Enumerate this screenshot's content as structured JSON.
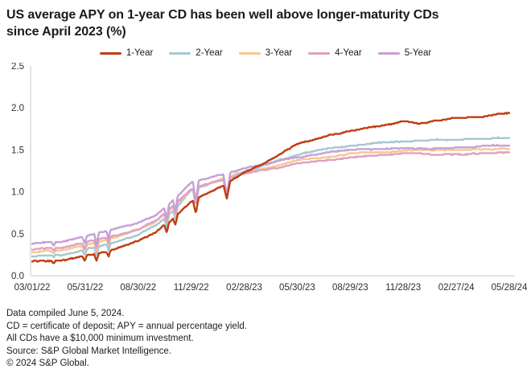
{
  "title": {
    "line1": "US average APY on 1-year CD has been well above longer-maturity CDs",
    "line2": "since April 2023 (%)"
  },
  "legend": {
    "position": "top",
    "items": [
      {
        "label": "1-Year",
        "color": "#bf3e10"
      },
      {
        "label": "2-Year",
        "color": "#a5c8d3"
      },
      {
        "label": "3-Year",
        "color": "#f7c78e"
      },
      {
        "label": "4-Year",
        "color": "#dfa0c2"
      },
      {
        "label": "5-Year",
        "color": "#c6a0d6"
      }
    ]
  },
  "chart_data": {
    "type": "line",
    "title": "US average APY on 1-year CD has been well above longer-maturity CDs since April 2023 (%)",
    "xlabel": "",
    "ylabel": "",
    "ylim": [
      0.0,
      2.5
    ],
    "y_ticks": [
      "0.0",
      "0.5",
      "1.0",
      "1.5",
      "2.0",
      "2.5"
    ],
    "x_tick_labels": [
      "03/01/22",
      "05/31/22",
      "08/30/22",
      "11/29/22",
      "02/28/23",
      "05/30/23",
      "08/29/23",
      "11/28/23",
      "02/27/24",
      "05/28/24"
    ],
    "grid": false,
    "axis_color": "#c8c8c8",
    "tick_label_color": "#2e2e2e",
    "series": [
      {
        "name": "1-Year",
        "color": "#bf3e10",
        "dip_scale": 0.85,
        "values_at_ticks": [
          0.17,
          0.24,
          0.41,
          0.89,
          1.24,
          1.57,
          1.72,
          1.83,
          1.87,
          1.93
        ],
        "anchors": [
          [
            0,
            0.17
          ],
          [
            0.06,
            0.18
          ],
          [
            0.111,
            0.24
          ],
          [
            0.167,
            0.31
          ],
          [
            0.222,
            0.41
          ],
          [
            0.26,
            0.52
          ],
          [
            0.3,
            0.7
          ],
          [
            0.333,
            0.89
          ],
          [
            0.37,
            1.0
          ],
          [
            0.4,
            1.08
          ],
          [
            0.444,
            1.24
          ],
          [
            0.48,
            1.33
          ],
          [
            0.52,
            1.46
          ],
          [
            0.556,
            1.57
          ],
          [
            0.6,
            1.64
          ],
          [
            0.667,
            1.72
          ],
          [
            0.72,
            1.78
          ],
          [
            0.778,
            1.83
          ],
          [
            0.81,
            1.81
          ],
          [
            0.84,
            1.85
          ],
          [
            0.889,
            1.87
          ],
          [
            0.94,
            1.88
          ],
          [
            0.97,
            1.91
          ],
          [
            1,
            1.93
          ]
        ]
      },
      {
        "name": "2-Year",
        "color": "#a5c8d3",
        "dip_scale": 1.0,
        "values_at_ticks": [
          0.23,
          0.32,
          0.49,
          1.01,
          1.24,
          1.44,
          1.54,
          1.61,
          1.63,
          1.65
        ],
        "anchors": [
          [
            0,
            0.23
          ],
          [
            0.06,
            0.24
          ],
          [
            0.111,
            0.32
          ],
          [
            0.167,
            0.4
          ],
          [
            0.222,
            0.49
          ],
          [
            0.26,
            0.6
          ],
          [
            0.3,
            0.8
          ],
          [
            0.333,
            1.01
          ],
          [
            0.37,
            1.09
          ],
          [
            0.4,
            1.16
          ],
          [
            0.444,
            1.24
          ],
          [
            0.48,
            1.31
          ],
          [
            0.52,
            1.39
          ],
          [
            0.556,
            1.44
          ],
          [
            0.6,
            1.49
          ],
          [
            0.667,
            1.54
          ],
          [
            0.72,
            1.58
          ],
          [
            0.778,
            1.61
          ],
          [
            0.84,
            1.62
          ],
          [
            0.889,
            1.63
          ],
          [
            1,
            1.65
          ]
        ]
      },
      {
        "name": "3-Year",
        "color": "#f7c78e",
        "dip_scale": 1.0,
        "values_at_ticks": [
          0.28,
          0.36,
          0.54,
          1.02,
          1.23,
          1.39,
          1.45,
          1.49,
          1.51,
          1.52
        ],
        "anchors": [
          [
            0,
            0.28
          ],
          [
            0.06,
            0.29
          ],
          [
            0.111,
            0.36
          ],
          [
            0.167,
            0.44
          ],
          [
            0.222,
            0.54
          ],
          [
            0.26,
            0.64
          ],
          [
            0.3,
            0.83
          ],
          [
            0.333,
            1.02
          ],
          [
            0.37,
            1.09
          ],
          [
            0.4,
            1.15
          ],
          [
            0.444,
            1.23
          ],
          [
            0.52,
            1.33
          ],
          [
            0.556,
            1.39
          ],
          [
            0.667,
            1.45
          ],
          [
            0.778,
            1.49
          ],
          [
            0.889,
            1.51
          ],
          [
            1,
            1.52
          ]
        ]
      },
      {
        "name": "4-Year",
        "color": "#dfa0c2",
        "dip_scale": 1.0,
        "values_at_ticks": [
          0.31,
          0.39,
          0.56,
          1.03,
          1.22,
          1.35,
          1.4,
          1.45,
          1.45,
          1.48
        ],
        "anchors": [
          [
            0,
            0.31
          ],
          [
            0.06,
            0.32
          ],
          [
            0.111,
            0.39
          ],
          [
            0.167,
            0.47
          ],
          [
            0.222,
            0.56
          ],
          [
            0.26,
            0.66
          ],
          [
            0.3,
            0.85
          ],
          [
            0.333,
            1.03
          ],
          [
            0.4,
            1.14
          ],
          [
            0.444,
            1.22
          ],
          [
            0.52,
            1.3
          ],
          [
            0.556,
            1.35
          ],
          [
            0.667,
            1.4
          ],
          [
            0.778,
            1.45
          ],
          [
            0.85,
            1.44
          ],
          [
            0.889,
            1.45
          ],
          [
            1,
            1.48
          ]
        ]
      },
      {
        "name": "5-Year",
        "color": "#c6a0d6",
        "dip_scale": 1.25,
        "values_at_ticks": [
          0.38,
          0.46,
          0.62,
          1.1,
          1.29,
          1.42,
          1.49,
          1.53,
          1.53,
          1.55
        ],
        "anchors": [
          [
            0,
            0.38
          ],
          [
            0.06,
            0.39
          ],
          [
            0.111,
            0.46
          ],
          [
            0.167,
            0.54
          ],
          [
            0.222,
            0.62
          ],
          [
            0.26,
            0.72
          ],
          [
            0.3,
            0.91
          ],
          [
            0.333,
            1.1
          ],
          [
            0.4,
            1.21
          ],
          [
            0.444,
            1.29
          ],
          [
            0.52,
            1.38
          ],
          [
            0.556,
            1.42
          ],
          [
            0.667,
            1.49
          ],
          [
            0.778,
            1.53
          ],
          [
            0.85,
            1.52
          ],
          [
            0.889,
            1.53
          ],
          [
            1,
            1.55
          ]
        ]
      }
    ],
    "dips": [
      {
        "t": 0.045,
        "depth": 0.03,
        "width": 0.004
      },
      {
        "t": 0.11,
        "depth": 0.07,
        "width": 0.005
      },
      {
        "t": 0.135,
        "depth": 0.1,
        "width": 0.005
      },
      {
        "t": 0.16,
        "depth": 0.08,
        "width": 0.004
      },
      {
        "t": 0.282,
        "depth": 0.13,
        "width": 0.005
      },
      {
        "t": 0.3,
        "depth": 0.12,
        "width": 0.005
      },
      {
        "t": 0.343,
        "depth": 0.2,
        "width": 0.006
      },
      {
        "t": 0.408,
        "depth": 0.22,
        "width": 0.007
      }
    ]
  },
  "footnotes": {
    "line1": "Data compiled June 5, 2024.",
    "line2": "CD = certificate of deposit; APY = annual percentage yield.",
    "line3": "All CDs have a $10,000 minimum investment.",
    "line4": "Source: S&P Global Market Intelligence.",
    "line5": "© 2024 S&P Global."
  }
}
